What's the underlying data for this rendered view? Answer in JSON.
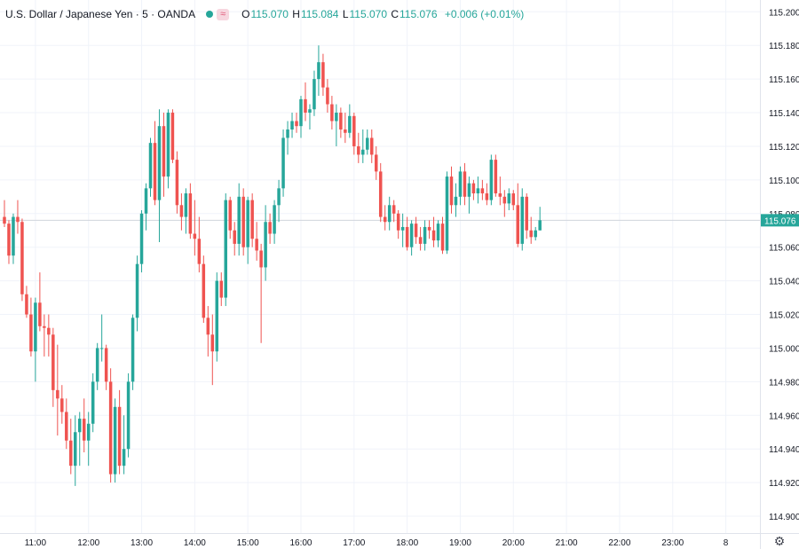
{
  "header": {
    "symbol": "U.S. Dollar / Japanese Yen · 5 · OANDA",
    "wave_glyph": "≈",
    "o_label": "O",
    "o_value": "115.070",
    "h_label": "H",
    "h_value": "115.084",
    "l_label": "L",
    "l_value": "115.070",
    "c_label": "C",
    "c_value": "115.076",
    "change": "+0.006 (+0.01%)"
  },
  "colors": {
    "up": "#26a69a",
    "down": "#ef5350",
    "grid": "#f0f3fa",
    "text": "#131722",
    "crosshair": "#d1d4dc"
  },
  "icons": {
    "settings": "gear-icon"
  },
  "chart_data": {
    "type": "candlestick",
    "y_ticks": [
      "115.200",
      "115.180",
      "115.160",
      "115.140",
      "115.120",
      "115.100",
      "115.080",
      "115.060",
      "115.040",
      "115.020",
      "115.000",
      "114.980",
      "114.960",
      "114.940",
      "114.920",
      "114.900"
    ],
    "ylim": [
      114.89,
      115.207
    ],
    "x_ticks": [
      {
        "label": "11:00",
        "idx": 7
      },
      {
        "label": "12:00",
        "idx": 19
      },
      {
        "label": "13:00",
        "idx": 31
      },
      {
        "label": "14:00",
        "idx": 43
      },
      {
        "label": "15:00",
        "idx": 55
      },
      {
        "label": "16:00",
        "idx": 67
      },
      {
        "label": "17:00",
        "idx": 79
      },
      {
        "label": "18:00",
        "idx": 91
      },
      {
        "label": "19:00",
        "idx": 103
      },
      {
        "label": "20:00",
        "idx": 115
      },
      {
        "label": "21:00",
        "idx": 127
      },
      {
        "label": "22:00",
        "idx": 139
      },
      {
        "label": "23:00",
        "idx": 151
      },
      {
        "label": "8",
        "idx": 163
      }
    ],
    "last_price": "115.076",
    "series": [
      {
        "candles": [
          [
            115.078,
            115.088,
            115.072,
            115.074
          ],
          [
            115.074,
            115.076,
            115.05,
            115.055
          ],
          [
            115.055,
            115.08,
            115.05,
            115.078
          ],
          [
            115.078,
            115.088,
            115.068,
            115.075
          ],
          [
            115.075,
            115.077,
            115.028,
            115.032
          ],
          [
            115.032,
            115.037,
            115.018,
            115.02
          ],
          [
            115.02,
            115.03,
            114.995,
            114.998
          ],
          [
            114.998,
            115.03,
            114.98,
            115.027
          ],
          [
            115.027,
            115.045,
            115.01,
            115.013
          ],
          [
            115.013,
            115.02,
            114.995,
            115.012
          ],
          [
            115.012,
            115.02,
            114.995,
            115.008
          ],
          [
            115.008,
            115.012,
            114.965,
            114.975
          ],
          [
            114.975,
            115.002,
            114.948,
            114.97
          ],
          [
            114.97,
            114.978,
            114.955,
            114.962
          ],
          [
            114.962,
            114.97,
            114.94,
            114.945
          ],
          [
            114.945,
            114.958,
            114.925,
            114.93
          ],
          [
            114.93,
            114.96,
            114.918,
            114.95
          ],
          [
            114.95,
            114.962,
            114.93,
            114.958
          ],
          [
            114.958,
            114.97,
            114.938,
            114.945
          ],
          [
            114.945,
            114.962,
            114.93,
            114.955
          ],
          [
            114.955,
            114.985,
            114.95,
            114.98
          ],
          [
            114.98,
            115.003,
            114.975,
            115.0
          ],
          [
            115.0,
            115.02,
            114.992,
            115.0
          ],
          [
            115.0,
            115.002,
            114.975,
            114.98
          ],
          [
            114.98,
            114.988,
            114.92,
            114.925
          ],
          [
            114.925,
            114.97,
            114.92,
            114.965
          ],
          [
            114.965,
            114.975,
            114.925,
            114.93
          ],
          [
            114.93,
            114.96,
            114.925,
            114.94
          ],
          [
            114.94,
            114.985,
            114.935,
            114.98
          ],
          [
            114.98,
            115.02,
            114.975,
            115.018
          ],
          [
            115.018,
            115.055,
            115.01,
            115.05
          ],
          [
            115.05,
            115.082,
            115.045,
            115.08
          ],
          [
            115.08,
            115.098,
            115.07,
            115.095
          ],
          [
            115.095,
            115.125,
            115.09,
            115.122
          ],
          [
            115.122,
            115.135,
            115.085,
            115.088
          ],
          [
            115.088,
            115.142,
            115.063,
            115.132
          ],
          [
            115.132,
            115.14,
            115.09,
            115.102
          ],
          [
            115.102,
            115.142,
            115.095,
            115.14
          ],
          [
            115.14,
            115.142,
            115.11,
            115.112
          ],
          [
            115.112,
            115.117,
            115.08,
            115.085
          ],
          [
            115.085,
            115.092,
            115.07,
            115.078
          ],
          [
            115.078,
            115.095,
            115.068,
            115.092
          ],
          [
            115.092,
            115.098,
            115.065,
            115.068
          ],
          [
            115.068,
            115.088,
            115.055,
            115.065
          ],
          [
            115.065,
            115.078,
            115.045,
            115.05
          ],
          [
            115.05,
            115.055,
            115.015,
            115.018
          ],
          [
            115.018,
            115.025,
            114.995,
            115.008
          ],
          [
            115.008,
            115.02,
            114.978,
            114.998
          ],
          [
            114.998,
            115.045,
            114.992,
            115.04
          ],
          [
            115.04,
            115.045,
            115.025,
            115.03
          ],
          [
            115.03,
            115.092,
            115.025,
            115.088
          ],
          [
            115.088,
            115.09,
            115.065,
            115.07
          ],
          [
            115.07,
            115.075,
            115.055,
            115.062
          ],
          [
            115.062,
            115.098,
            115.055,
            115.09
          ],
          [
            115.09,
            115.095,
            115.055,
            115.06
          ],
          [
            115.06,
            115.09,
            115.05,
            115.088
          ],
          [
            115.088,
            115.092,
            115.06,
            115.065
          ],
          [
            115.065,
            115.075,
            115.052,
            115.058
          ],
          [
            115.058,
            115.062,
            115.003,
            115.048
          ],
          [
            115.048,
            115.085,
            115.04,
            115.075
          ],
          [
            115.075,
            115.08,
            115.062,
            115.068
          ],
          [
            115.068,
            115.088,
            115.062,
            115.085
          ],
          [
            115.085,
            115.1,
            115.075,
            115.095
          ],
          [
            115.095,
            115.13,
            115.09,
            115.125
          ],
          [
            115.125,
            115.135,
            115.115,
            115.13
          ],
          [
            115.13,
            115.14,
            115.125,
            115.135
          ],
          [
            115.135,
            115.14,
            115.128,
            115.132
          ],
          [
            115.132,
            115.15,
            115.125,
            115.148
          ],
          [
            115.148,
            115.158,
            115.135,
            115.14
          ],
          [
            115.14,
            115.145,
            115.13,
            115.142
          ],
          [
            115.142,
            115.165,
            115.138,
            115.16
          ],
          [
            115.16,
            115.18,
            115.15,
            115.17
          ],
          [
            115.17,
            115.175,
            115.15,
            115.155
          ],
          [
            115.155,
            115.16,
            115.14,
            115.145
          ],
          [
            115.145,
            115.15,
            115.13,
            115.135
          ],
          [
            115.135,
            115.145,
            115.12,
            115.14
          ],
          [
            115.14,
            115.143,
            115.125,
            115.13
          ],
          [
            115.13,
            115.14,
            115.122,
            115.128
          ],
          [
            115.128,
            115.145,
            115.125,
            115.138
          ],
          [
            115.138,
            115.14,
            115.115,
            115.12
          ],
          [
            115.12,
            115.128,
            115.11,
            115.115
          ],
          [
            115.115,
            115.13,
            115.11,
            115.118
          ],
          [
            115.118,
            115.13,
            115.115,
            115.125
          ],
          [
            115.125,
            115.13,
            115.11,
            115.115
          ],
          [
            115.115,
            115.12,
            115.1,
            115.105
          ],
          [
            115.105,
            115.11,
            115.075,
            115.078
          ],
          [
            115.078,
            115.085,
            115.07,
            115.075
          ],
          [
            115.075,
            115.09,
            115.07,
            115.085
          ],
          [
            115.085,
            115.088,
            115.075,
            115.08
          ],
          [
            115.08,
            115.082,
            115.065,
            115.07
          ],
          [
            115.07,
            115.08,
            115.06,
            115.072
          ],
          [
            115.072,
            115.078,
            115.058,
            115.06
          ],
          [
            115.06,
            115.076,
            115.055,
            115.074
          ],
          [
            115.074,
            115.078,
            115.062,
            115.066
          ],
          [
            115.066,
            115.072,
            115.058,
            115.062
          ],
          [
            115.062,
            115.076,
            115.058,
            115.072
          ],
          [
            115.072,
            115.076,
            115.065,
            115.07
          ],
          [
            115.07,
            115.078,
            115.06,
            115.064
          ],
          [
            115.064,
            115.076,
            115.06,
            115.074
          ],
          [
            115.074,
            115.078,
            115.056,
            115.058
          ],
          [
            115.058,
            115.105,
            115.056,
            115.102
          ],
          [
            115.102,
            115.108,
            115.08,
            115.085
          ],
          [
            115.085,
            115.098,
            115.078,
            115.09
          ],
          [
            115.09,
            115.108,
            115.085,
            115.105
          ],
          [
            115.105,
            115.11,
            115.085,
            115.09
          ],
          [
            115.09,
            115.102,
            115.08,
            115.098
          ],
          [
            115.098,
            115.1,
            115.088,
            115.092
          ],
          [
            115.092,
            115.102,
            115.086,
            115.095
          ],
          [
            115.095,
            115.1,
            115.088,
            115.092
          ],
          [
            115.092,
            115.098,
            115.085,
            115.088
          ],
          [
            115.088,
            115.115,
            115.085,
            115.112
          ],
          [
            115.112,
            115.115,
            115.09,
            115.092
          ],
          [
            115.092,
            115.102,
            115.085,
            115.09
          ],
          [
            115.09,
            115.094,
            115.078,
            115.086
          ],
          [
            115.086,
            115.095,
            115.082,
            115.092
          ],
          [
            115.092,
            115.094,
            115.082,
            115.085
          ],
          [
            115.085,
            115.098,
            115.06,
            115.062
          ],
          [
            115.062,
            115.095,
            115.058,
            115.09
          ],
          [
            115.09,
            115.092,
            115.065,
            115.07
          ],
          [
            115.07,
            115.078,
            115.062,
            115.066
          ],
          [
            115.066,
            115.072,
            115.064,
            115.07
          ],
          [
            115.07,
            115.084,
            115.07,
            115.076
          ]
        ]
      }
    ]
  }
}
